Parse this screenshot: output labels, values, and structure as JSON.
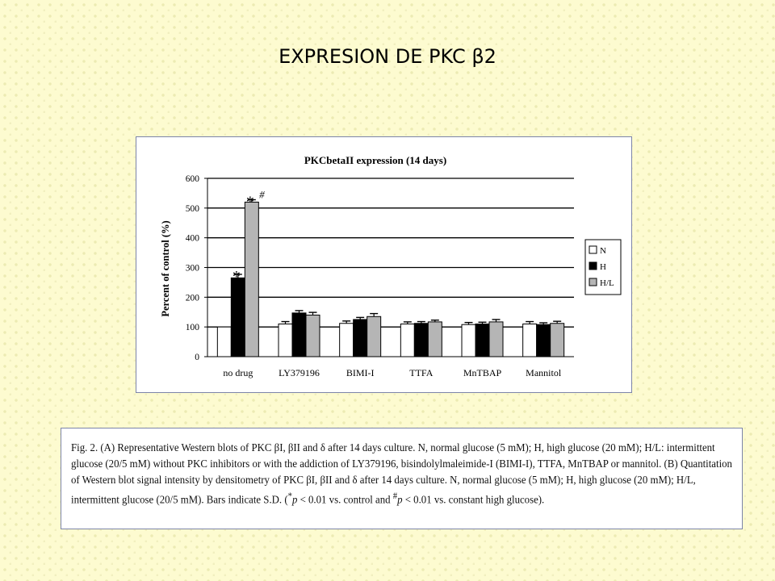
{
  "slide": {
    "title": "EXPRESION DE PKC β2"
  },
  "chart_data": {
    "type": "bar",
    "title": "PKCbetaII expression (14 days)",
    "ylabel": "Percent of control (%)",
    "xlabel": "",
    "ylim": [
      0,
      600
    ],
    "yticks": [
      0,
      100,
      200,
      300,
      400,
      500,
      600
    ],
    "grid": true,
    "legend_position": "right",
    "categories": [
      "no drug",
      "LY379196",
      "BIMI-I",
      "TTFA",
      "MnTBAP",
      "Mannitol"
    ],
    "series": [
      {
        "name": "N",
        "values": [
          100,
          110,
          112,
          110,
          108,
          110
        ],
        "errors": [
          0,
          8,
          8,
          7,
          7,
          8
        ],
        "color": "#ffffff"
      },
      {
        "name": "H",
        "values": [
          265,
          147,
          125,
          112,
          110,
          108
        ],
        "errors": [
          12,
          8,
          7,
          6,
          6,
          6
        ],
        "color": "#000000"
      },
      {
        "name": "H/L",
        "values": [
          520,
          140,
          135,
          117,
          117,
          112
        ],
        "errors": [
          8,
          9,
          10,
          6,
          8,
          7
        ],
        "color": "#b5b5b5"
      }
    ],
    "annotations": [
      {
        "text": "*",
        "category": "no drug",
        "series": "H"
      },
      {
        "text": "*",
        "category": "no drug",
        "series": "H/L"
      },
      {
        "text": "#",
        "category": "no drug",
        "series": "H/L"
      }
    ]
  },
  "caption": {
    "l1": "Fig. 2. (A) Representative Western blots of PKC βI, βII and δ after 14 days culture. N, normal glucose (5 mM); H, high glucose (20 mM); H/L: intermittent",
    "l2": "glucose (20/5 mM) without PKC inhibitors or with the addiction of LY379196, bisindolylmaleimide-I (BIMI-I), TTFA, MnTBAP or mannitol. (B) Quantitation",
    "l3": "of Western blot signal intensity by densitometry of PKC βI, βII and δ after 14 days culture. N, normal glucose (5 mM); H, high glucose (20 mM); H/L,",
    "l4_pre": "intermittent glucose (20/5 mM). Bars indicate S.D. (",
    "l4_sup1": "*",
    "l4_p1": "p",
    "l4_mid": " < 0.01 vs. control and ",
    "l4_sup2": "#",
    "l4_p2": "p",
    "l4_post": " < 0.01 vs. constant high glucose)."
  }
}
